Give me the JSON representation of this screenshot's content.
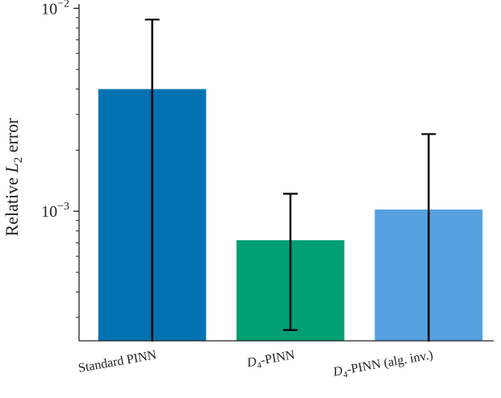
{
  "chart_data": {
    "type": "bar",
    "title": "",
    "xlabel": "",
    "ylabel_main": "Relative ",
    "ylabel_var": "L",
    "ylabel_sub": "2",
    "ylabel_tail": " error",
    "yscale": "log",
    "ylim": [
      0.00023,
      0.0105
    ],
    "yticks": [
      {
        "value": 0.01,
        "base": "10",
        "exp": "−2"
      },
      {
        "value": 0.001,
        "base": "10",
        "exp": "−3"
      }
    ],
    "categories": [
      {
        "prefix": "Standard PINN",
        "sub": "",
        "suffix": ""
      },
      {
        "prefix": "D",
        "sub": "4",
        "suffix": "-PINN"
      },
      {
        "prefix": "D",
        "sub": "4",
        "suffix": "-PINN (alg. inv.)"
      }
    ],
    "values": [
      0.004,
      0.00072,
      0.00102
    ],
    "error_low": [
      0.0,
      0.00026,
      0.0
    ],
    "error_high": [
      0.0088,
      0.00122,
      0.0024
    ],
    "colors": [
      "#0072B2",
      "#009E73",
      "#56A0E0"
    ]
  }
}
